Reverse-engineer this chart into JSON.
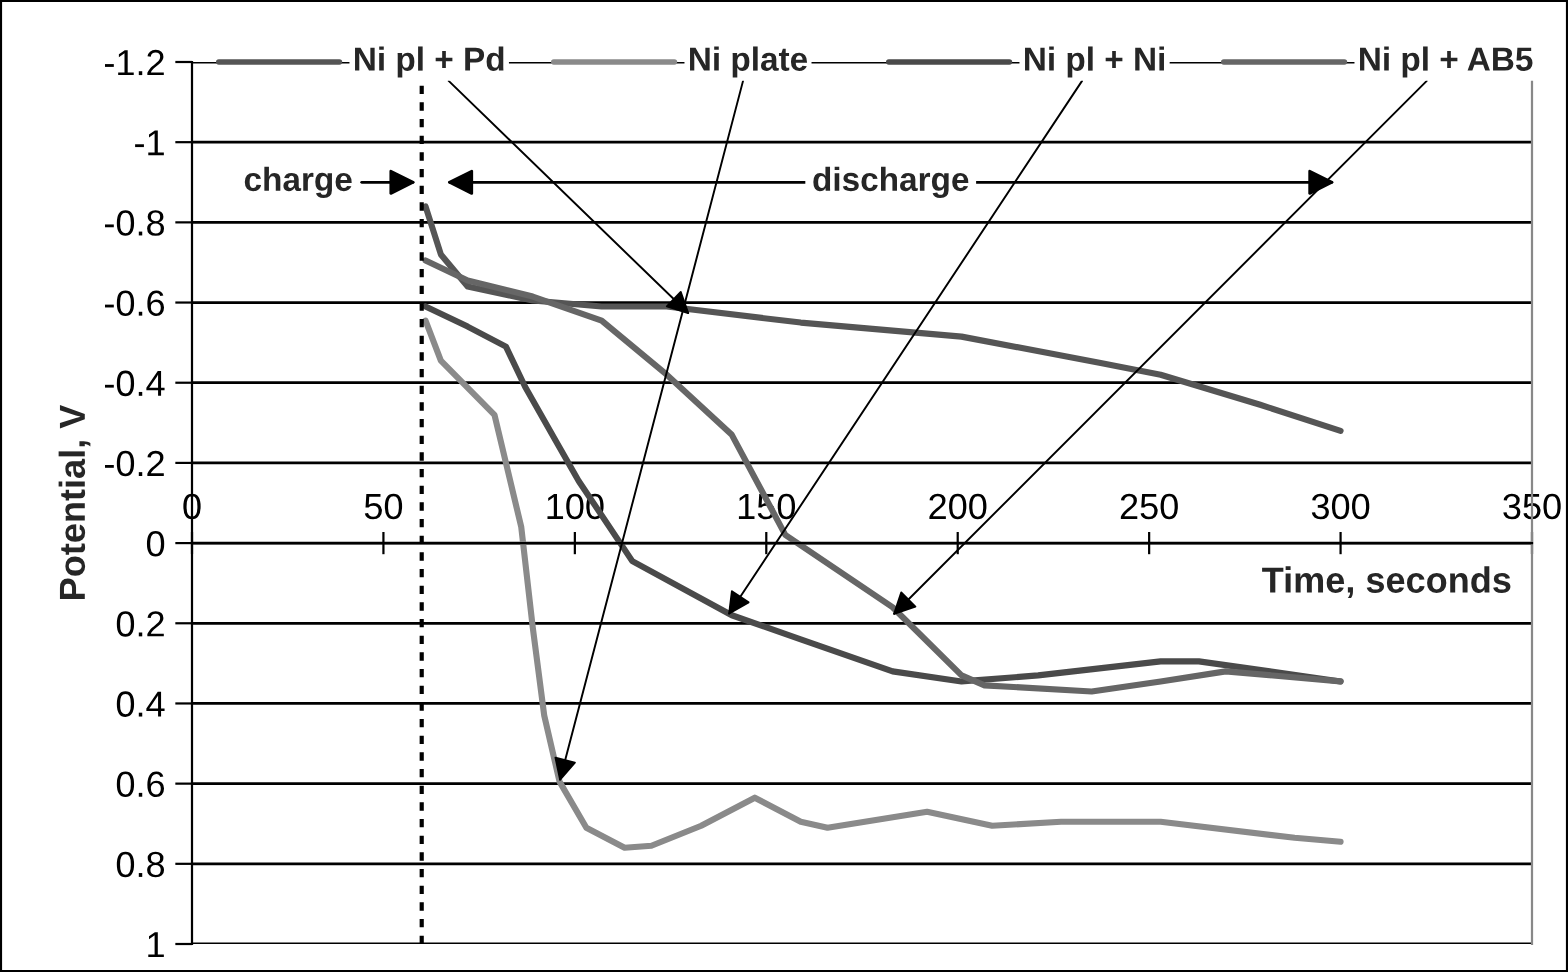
{
  "chart_data": {
    "type": "line",
    "ylabel": "Potential, V",
    "xlabel": "Time, seconds",
    "xlim": [
      0,
      350
    ],
    "xticks": [
      0,
      50,
      100,
      150,
      200,
      250,
      300,
      350
    ],
    "ylim": [
      1,
      -1.2
    ],
    "yticks": [
      -1.2,
      -1,
      -0.8,
      -0.6,
      -0.4,
      -0.2,
      0,
      0.2,
      0.4,
      0.6,
      0.8,
      1
    ],
    "grid": "y",
    "series": [
      {
        "color": "#555555",
        "x": [
          61,
          65,
          72,
          89,
          107,
          124,
          159,
          201,
          237,
          253,
          279,
          300
        ],
        "values": [
          -0.84,
          -0.72,
          -0.64,
          -0.605,
          -0.59,
          -0.59,
          -0.55,
          -0.515,
          -0.45,
          -0.42,
          -0.345,
          -0.28
        ]
      },
      {
        "color": "#8a8a8a",
        "x": [
          61,
          65,
          79,
          84,
          86,
          89,
          92,
          96,
          103,
          113,
          120,
          133,
          147,
          159,
          166,
          192,
          209,
          227,
          253,
          288,
          300
        ],
        "values": [
          -0.555,
          -0.455,
          -0.32,
          -0.12,
          -0.04,
          0.21,
          0.43,
          0.595,
          0.71,
          0.76,
          0.755,
          0.705,
          0.635,
          0.695,
          0.71,
          0.67,
          0.705,
          0.695,
          0.695,
          0.735,
          0.745
        ]
      },
      {
        "color": "#4a4a4a",
        "x": [
          61,
          72,
          82,
          87,
          95,
          101,
          115,
          141,
          159,
          183,
          201,
          221,
          253,
          263,
          300
        ],
        "values": [
          -0.59,
          -0.54,
          -0.49,
          -0.39,
          -0.255,
          -0.155,
          0.045,
          0.18,
          0.24,
          0.32,
          0.345,
          0.33,
          0.295,
          0.295,
          0.345
        ]
      },
      {
        "color": "#666666",
        "x": [
          61,
          72,
          89,
          107,
          124,
          141,
          155,
          183,
          201,
          207,
          235,
          253,
          270,
          300
        ],
        "values": [
          -0.705,
          -0.655,
          -0.615,
          -0.555,
          -0.42,
          -0.27,
          -0.02,
          0.16,
          0.33,
          0.355,
          0.37,
          0.345,
          0.32,
          0.345
        ]
      }
    ],
    "ref_lines": [
      {
        "axis": "x",
        "value": 60,
        "color": "#000000",
        "line_style": "dotted"
      }
    ],
    "annotations": [
      {
        "text": "Ni pl + Pd",
        "x": 130,
        "y": -0.57
      },
      {
        "text": "Ni plate",
        "x": 96,
        "y": 0.595
      },
      {
        "text": "Ni pl + Ni",
        "x": 140,
        "y": 0.18
      },
      {
        "text": "Ni pl + AB5",
        "x": 183,
        "y": 0.18
      },
      {
        "text": "charge",
        "x": 60,
        "y": -0.9
      },
      "discharge"
    ]
  }
}
